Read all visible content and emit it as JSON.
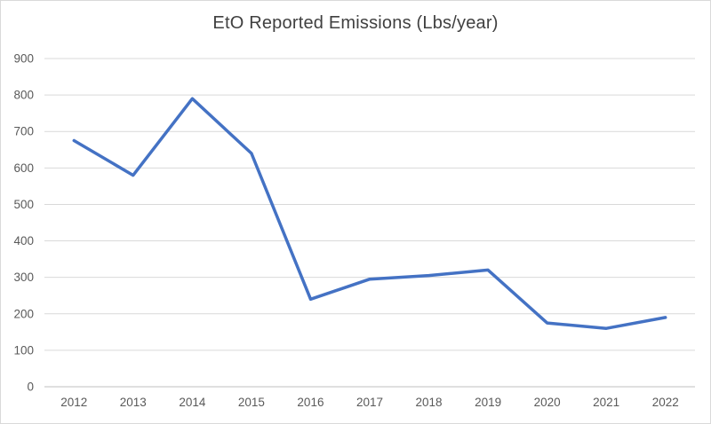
{
  "chart_data": {
    "type": "line",
    "title": "EtO Reported Emissions (Lbs/year)",
    "categories": [
      "2012",
      "2013",
      "2014",
      "2015",
      "2016",
      "2017",
      "2018",
      "2019",
      "2020",
      "2021",
      "2022"
    ],
    "values": [
      675,
      580,
      790,
      640,
      240,
      295,
      305,
      320,
      175,
      160,
      190
    ],
    "xlabel": "",
    "ylabel": "",
    "ylim": [
      0,
      900
    ],
    "ytick_step": 100,
    "grid": "horizontal",
    "legend": "none",
    "colors": {
      "line": "#4472C4",
      "gridline": "#D9D9D9",
      "axis_line": "#BFBFBF",
      "tick_label": "#595959",
      "title": "#404040",
      "chart_border": "#D9D9D9",
      "background": "#FFFFFF"
    }
  }
}
